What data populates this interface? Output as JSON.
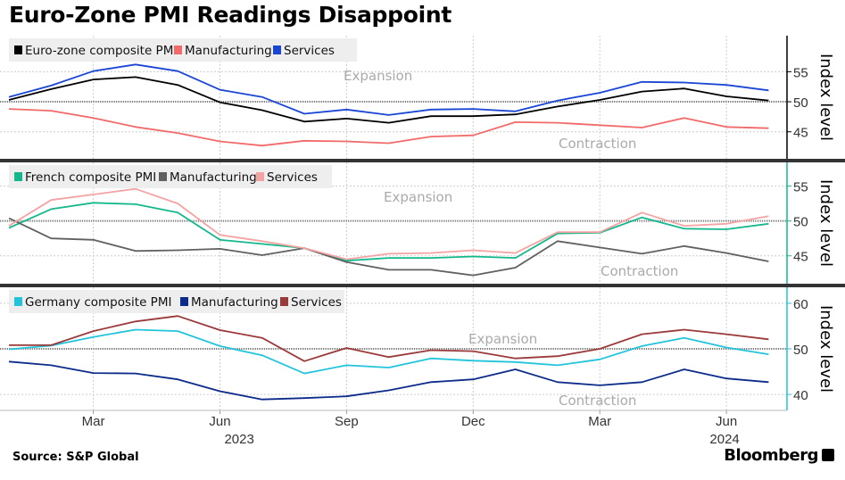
{
  "title": "Euro-Zone PMI Readings Disappoint",
  "source": "Source: S&P Global",
  "brand": "Bloomberg",
  "chart_data": [
    {
      "type": "line",
      "months": [
        "Jan 2023",
        "Feb 2023",
        "Mar 2023",
        "Apr 2023",
        "May 2023",
        "Jun 2023",
        "Jul 2023",
        "Aug 2023",
        "Sep 2023",
        "Oct 2023",
        "Nov 2023",
        "Dec 2023",
        "Jan 2024",
        "Feb 2024",
        "Mar 2024",
        "Apr 2024",
        "May 2024",
        "Jun 2024",
        "Jul 2024"
      ],
      "ylabel": "Index level",
      "ylim": [
        40.5,
        61
      ],
      "yticks": [
        45,
        50,
        55
      ],
      "axis_color": "#000000",
      "expansion_label": "Expansion",
      "contraction_label": "Contraction",
      "series": [
        {
          "name": "Euro-zone composite PMI",
          "color": "#000000",
          "values": [
            50.3,
            52.1,
            53.7,
            54.1,
            52.8,
            49.9,
            48.6,
            46.7,
            47.2,
            46.5,
            47.6,
            47.6,
            47.9,
            49.2,
            50.3,
            51.7,
            52.2,
            50.9,
            50.2
          ]
        },
        {
          "name": "Manufacturing",
          "color": "#f26a6a",
          "values": [
            48.8,
            48.5,
            47.3,
            45.8,
            44.8,
            43.4,
            42.7,
            43.5,
            43.4,
            43.1,
            44.2,
            44.4,
            46.6,
            46.5,
            46.1,
            45.7,
            47.3,
            45.8,
            45.6
          ]
        },
        {
          "name": "Services",
          "color": "#1a46d6",
          "values": [
            50.8,
            52.7,
            55.1,
            56.2,
            55.1,
            52.0,
            50.8,
            48.0,
            48.7,
            47.8,
            48.7,
            48.8,
            48.4,
            50.2,
            51.5,
            53.3,
            53.2,
            52.8,
            51.9
          ]
        }
      ]
    },
    {
      "type": "line",
      "months": [
        "Jan 2023",
        "Feb 2023",
        "Mar 2023",
        "Apr 2023",
        "May 2023",
        "Jun 2023",
        "Jul 2023",
        "Aug 2023",
        "Sep 2023",
        "Oct 2023",
        "Nov 2023",
        "Dec 2023",
        "Jan 2024",
        "Feb 2024",
        "Mar 2024",
        "Apr 2024",
        "May 2024",
        "Jun 2024",
        "Jul 2024"
      ],
      "ylabel": "Index level",
      "ylim": [
        41,
        58.4
      ],
      "yticks": [
        45,
        50,
        55
      ],
      "axis_color": "#14b88c",
      "expansion_label": "Expansion",
      "contraction_label": "Contraction",
      "series": [
        {
          "name": "French composite PMI",
          "color": "#14b88c",
          "values": [
            49.0,
            51.7,
            52.6,
            52.4,
            51.2,
            47.3,
            46.7,
            46.1,
            44.3,
            44.7,
            44.7,
            44.9,
            44.7,
            48.2,
            48.3,
            50.5,
            48.9,
            48.8,
            49.6
          ]
        },
        {
          "name": "Manufacturing",
          "color": "#606060",
          "values": [
            50.4,
            47.5,
            47.3,
            45.7,
            45.8,
            46.0,
            45.1,
            46.1,
            44.1,
            43.0,
            43.0,
            42.2,
            43.3,
            47.1,
            46.2,
            45.3,
            46.4,
            45.4,
            44.2
          ]
        },
        {
          "name": "Services",
          "color": "#f4a3a3",
          "values": [
            49.3,
            53.0,
            53.8,
            54.6,
            52.5,
            48.0,
            47.1,
            46.1,
            44.5,
            45.3,
            45.4,
            45.8,
            45.4,
            48.4,
            48.4,
            51.2,
            49.3,
            49.6,
            50.7
          ]
        }
      ]
    },
    {
      "type": "line",
      "months": [
        "Jan 2023",
        "Feb 2023",
        "Mar 2023",
        "Apr 2023",
        "May 2023",
        "Jun 2023",
        "Jul 2023",
        "Aug 2023",
        "Sep 2023",
        "Oct 2023",
        "Nov 2023",
        "Dec 2023",
        "Jan 2024",
        "Feb 2024",
        "Mar 2024",
        "Apr 2024",
        "May 2024",
        "Jun 2024",
        "Jul 2024"
      ],
      "ylabel": "Index level",
      "ylim": [
        36.5,
        63.5
      ],
      "yticks": [
        40,
        50,
        60
      ],
      "axis_color": "#22c4dc",
      "expansion_label": "Expansion",
      "contraction_label": "Contraction",
      "series": [
        {
          "name": "Germany composite PMI",
          "color": "#22c4dc",
          "values": [
            49.9,
            50.7,
            52.6,
            54.2,
            53.9,
            50.6,
            48.6,
            44.6,
            46.4,
            45.9,
            47.9,
            47.4,
            47.1,
            46.4,
            47.7,
            50.6,
            52.4,
            50.3,
            48.8
          ]
        },
        {
          "name": "Manufacturing",
          "color": "#0d2b8a",
          "values": [
            47.2,
            46.4,
            44.7,
            44.6,
            43.3,
            40.7,
            38.9,
            39.2,
            39.6,
            40.9,
            42.7,
            43.3,
            45.5,
            42.7,
            42.0,
            42.7,
            45.5,
            43.5,
            42.7
          ]
        },
        {
          "name": "Services",
          "color": "#9b3a3a",
          "values": [
            50.8,
            50.8,
            53.9,
            56.0,
            57.2,
            54.1,
            52.4,
            47.3,
            50.2,
            48.2,
            49.7,
            49.5,
            47.9,
            48.4,
            50.0,
            53.2,
            54.2,
            53.2,
            52.1
          ]
        }
      ]
    }
  ],
  "xaxis": {
    "month_ticks": [
      {
        "index": 2,
        "label": "Mar"
      },
      {
        "index": 5,
        "label": "Jun"
      },
      {
        "index": 8,
        "label": "Sep"
      },
      {
        "index": 11,
        "label": "Dec"
      },
      {
        "index": 14,
        "label": "Mar"
      },
      {
        "index": 17,
        "label": "Jun"
      }
    ],
    "year_ticks": [
      {
        "index": 5.5,
        "label": "2023"
      },
      {
        "index": 17,
        "label": "2024"
      }
    ]
  }
}
